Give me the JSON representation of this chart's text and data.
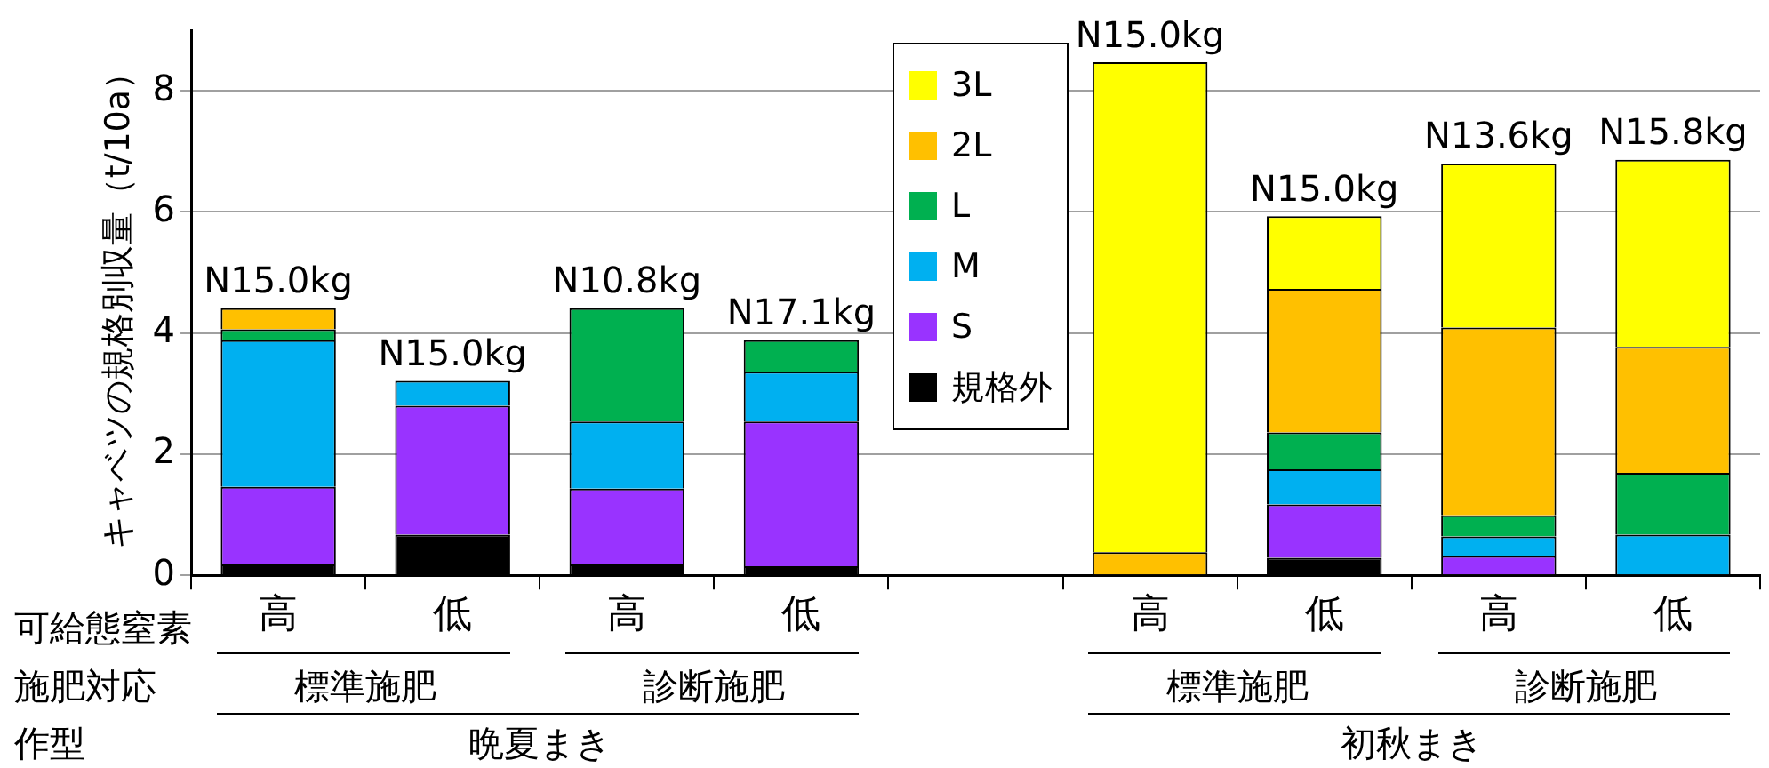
{
  "chart_data": {
    "type": "bar",
    "stacked": true,
    "ylabel": "キャベツの規格別収量（t/10a）",
    "categories": [
      "高",
      "低",
      "高",
      "低",
      null,
      "高",
      "低",
      "高",
      "低"
    ],
    "series": [
      {
        "name": "規格外",
        "color": "#000000",
        "values": [
          0.18,
          0.67,
          0.18,
          0.15,
          null,
          0,
          0.29,
          0,
          0
        ]
      },
      {
        "name": "S",
        "color": "#9933ff",
        "values": [
          1.28,
          2.13,
          1.25,
          2.39,
          null,
          0,
          0.88,
          0.32,
          0
        ]
      },
      {
        "name": "M",
        "color": "#00b0f0",
        "values": [
          2.42,
          0.41,
          1.11,
          0.82,
          null,
          0,
          0.58,
          0.32,
          0.67
        ]
      },
      {
        "name": "L",
        "color": "#00b050",
        "values": [
          0.18,
          0,
          1.87,
          0.52,
          null,
          0,
          0.61,
          0.35,
          1.02
        ]
      },
      {
        "name": "2L",
        "color": "#ffc000",
        "values": [
          0.35,
          0,
          0,
          0,
          null,
          0.38,
          2.37,
          3.1,
          2.08
        ]
      },
      {
        "name": "3L",
        "color": "#ffff00",
        "values": [
          0,
          0,
          0,
          0,
          null,
          8.09,
          1.2,
          2.71,
          3.09
        ]
      }
    ],
    "ylim": [
      0,
      9
    ],
    "yticks": [
      0,
      2,
      4,
      6,
      8
    ],
    "grid": "y",
    "legend": "top",
    "annotations": [
      "N15.0kg",
      "N15.0kg",
      "N10.8kg",
      "N17.1kg",
      "N15.0kg",
      "N15.0kg",
      "N13.6kg",
      "N15.8kg",
      "可給態窒素",
      "施肥対応",
      "作型",
      "標準施肥",
      "診断施肥",
      "標準施肥",
      "診断施肥",
      "晩夏まき",
      "初秋まき"
    ]
  }
}
